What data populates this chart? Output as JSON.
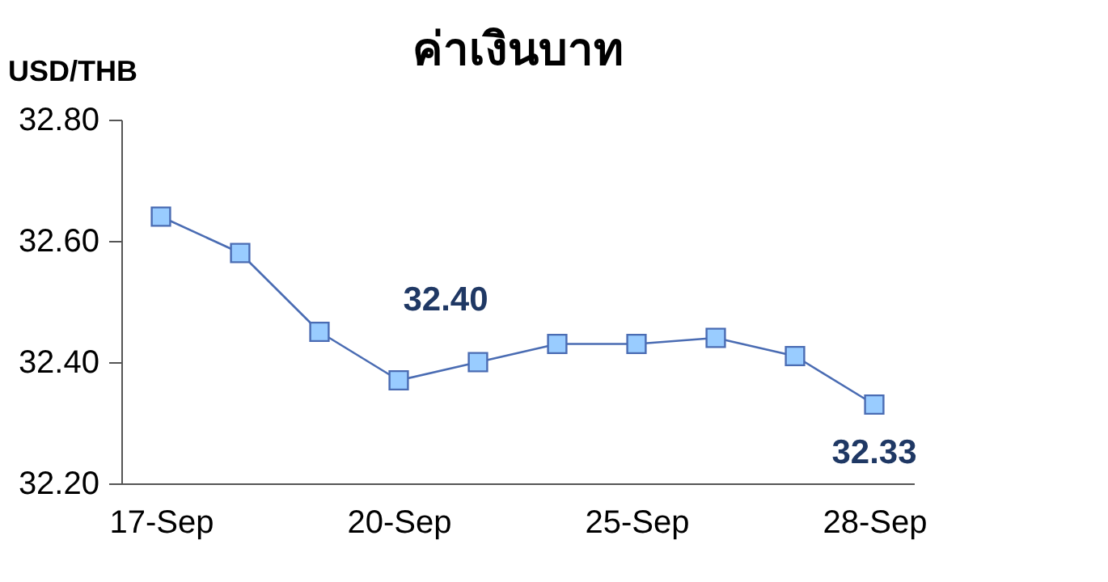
{
  "chart_data": {
    "type": "line",
    "title": "ค่าเงินบาท",
    "ylabel": "USD/THB",
    "categories": [
      "17-Sep",
      null,
      null,
      "20-Sep",
      null,
      null,
      "25-Sep",
      null,
      null,
      "28-Sep"
    ],
    "series": [
      {
        "color": "#4a6cb3",
        "values": [
          32.64,
          32.58,
          32.45,
          32.37,
          32.4,
          32.43,
          32.43,
          32.44,
          32.41,
          32.33
        ],
        "value_labels": [
          null,
          null,
          null,
          null,
          "32.40",
          null,
          null,
          null,
          null,
          "32.33"
        ]
      }
    ],
    "ylim": [
      32.2,
      32.8
    ],
    "yticks": [
      {
        "value": 32.2,
        "label": "32.20"
      },
      {
        "value": 32.4,
        "label": "32.40"
      },
      {
        "value": 32.6,
        "label": "32.60"
      },
      {
        "value": 32.8,
        "label": "32.80"
      }
    ],
    "marker": "square",
    "line_style": "solid"
  }
}
